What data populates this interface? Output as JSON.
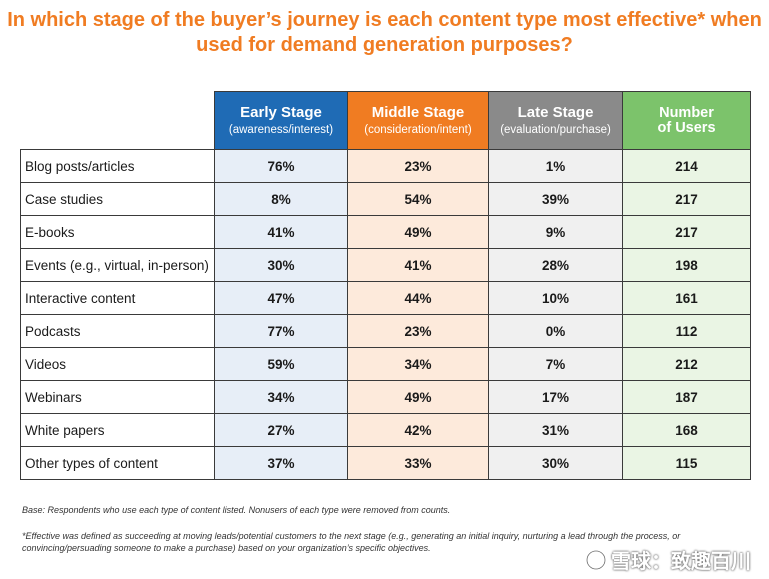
{
  "title": "In which stage of the buyer’s journey is each content type most effective* when used for demand generation purposes?",
  "colors": {
    "title": "#f07c22",
    "early": "#1f6bb5",
    "middle": "#f07c22",
    "late": "#8a8a8a",
    "users": "#7cc36b"
  },
  "chart_data": {
    "type": "table",
    "columns": [
      {
        "label": "Early Stage",
        "sublabel": "(awareness/interest)"
      },
      {
        "label": "Middle Stage",
        "sublabel": "(consideration/intent)"
      },
      {
        "label": "Late Stage",
        "sublabel": "(evaluation/purchase)"
      },
      {
        "label": "Number of Users",
        "sublabel": ""
      }
    ],
    "rows": [
      {
        "label": "Blog posts/articles",
        "early": "76%",
        "middle": "23%",
        "late": "1%",
        "users": "214"
      },
      {
        "label": "Case studies",
        "early": "8%",
        "middle": "54%",
        "late": "39%",
        "users": "217"
      },
      {
        "label": "E-books",
        "early": "41%",
        "middle": "49%",
        "late": "9%",
        "users": "217"
      },
      {
        "label": "Events (e.g., virtual, in-person)",
        "early": "30%",
        "middle": "41%",
        "late": "28%",
        "users": "198"
      },
      {
        "label": "Interactive content",
        "early": "47%",
        "middle": "44%",
        "late": "10%",
        "users": "161"
      },
      {
        "label": "Podcasts",
        "early": "77%",
        "middle": "23%",
        "late": "0%",
        "users": "112"
      },
      {
        "label": "Videos",
        "early": "59%",
        "middle": "34%",
        "late": "7%",
        "users": "212"
      },
      {
        "label": "Webinars",
        "early": "34%",
        "middle": "49%",
        "late": "17%",
        "users": "187"
      },
      {
        "label": "White papers",
        "early": "27%",
        "middle": "42%",
        "late": "31%",
        "users": "168"
      },
      {
        "label": "Other types of content",
        "early": "37%",
        "middle": "33%",
        "late": "30%",
        "users": "115"
      }
    ]
  },
  "notes": {
    "base": "Base: Respondents who use each type of content listed. Nonusers of each type were removed from counts.",
    "definition": "*Effective was defined as succeeding at moving leads/potential customers to the next stage (e.g., generating an initial inquiry, nurturing a lead through the process, or convincing/persuading someone to make a purchase) based on your organization’s specific objectives."
  },
  "watermark": {
    "text": "雪球：致趣百川",
    "icon": "snowball-logo-icon"
  }
}
